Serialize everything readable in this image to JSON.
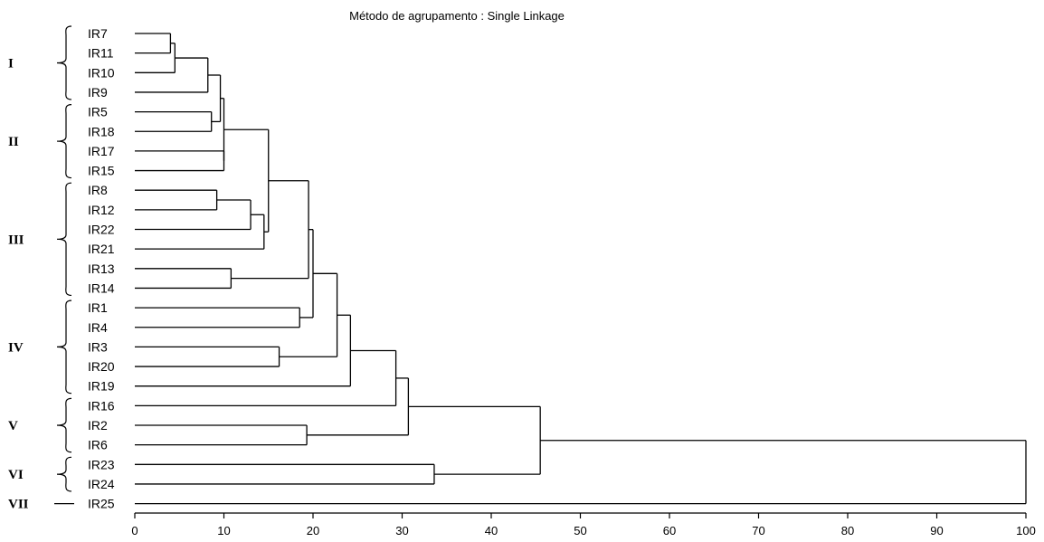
{
  "chart_data": {
    "type": "dendrogram",
    "title": "Método de agrupamento : Single Linkage",
    "xlim": [
      0,
      100
    ],
    "x_ticks": [
      0,
      10,
      20,
      30,
      40,
      50,
      60,
      70,
      80,
      90,
      100
    ],
    "leaves": [
      "IR7",
      "IR11",
      "IR10",
      "IR9",
      "IR5",
      "IR18",
      "IR17",
      "IR15",
      "IR8",
      "IR12",
      "IR22",
      "IR21",
      "IR13",
      "IR14",
      "IR1",
      "IR4",
      "IR3",
      "IR20",
      "IR19",
      "IR16",
      "IR2",
      "IR6",
      "IR23",
      "IR24",
      "IR25"
    ],
    "merges": [
      {
        "a": "IR7",
        "b": "IR11",
        "height": 4.0
      },
      {
        "a": "m0",
        "b": "IR10",
        "height": 4.5
      },
      {
        "a": "m1",
        "b": "IR9",
        "height": 8.2
      },
      {
        "a": "IR5",
        "b": "IR18",
        "height": 8.6
      },
      {
        "a": "m2",
        "b": "m3",
        "height": 9.6
      },
      {
        "a": "IR17",
        "b": "IR15",
        "height": 10.0
      },
      {
        "a": "m4",
        "b": "m5",
        "height": 10.0
      },
      {
        "a": "IR8",
        "b": "IR12",
        "height": 9.2
      },
      {
        "a": "m7",
        "b": "IR22",
        "height": 13.0
      },
      {
        "a": "m8",
        "b": "IR21",
        "height": 14.5
      },
      {
        "a": "m6",
        "b": "m9",
        "height": 15.0
      },
      {
        "a": "IR13",
        "b": "IR14",
        "height": 10.8
      },
      {
        "a": "m10",
        "b": "m11",
        "height": 19.5
      },
      {
        "a": "IR1",
        "b": "IR4",
        "height": 18.5
      },
      {
        "a": "m12",
        "b": "m13",
        "height": 20.0
      },
      {
        "a": "IR3",
        "b": "IR20",
        "height": 16.2
      },
      {
        "a": "m14",
        "b": "m15",
        "height": 22.7
      },
      {
        "a": "m16",
        "b": "IR19",
        "height": 24.2
      },
      {
        "a": "m17",
        "b": "IR16",
        "height": 29.3
      },
      {
        "a": "IR2",
        "b": "IR6",
        "height": 19.3
      },
      {
        "a": "m18",
        "b": "m19",
        "height": 30.7
      },
      {
        "a": "IR23",
        "b": "IR24",
        "height": 33.6
      },
      {
        "a": "m20",
        "b": "m21",
        "height": 45.5
      },
      {
        "a": "m22",
        "b": "IR25",
        "height": 100.0
      }
    ],
    "groups": [
      {
        "label": "I",
        "from": "IR7",
        "to": "IR9"
      },
      {
        "label": "II",
        "from": "IR5",
        "to": "IR15"
      },
      {
        "label": "III",
        "from": "IR8",
        "to": "IR14"
      },
      {
        "label": "IV",
        "from": "IR1",
        "to": "IR19"
      },
      {
        "label": "V",
        "from": "IR16",
        "to": "IR6"
      },
      {
        "label": "VI",
        "from": "IR23",
        "to": "IR24"
      },
      {
        "label": "VII",
        "from": "IR25",
        "to": "IR25"
      }
    ],
    "grid": false,
    "legend": "none"
  }
}
